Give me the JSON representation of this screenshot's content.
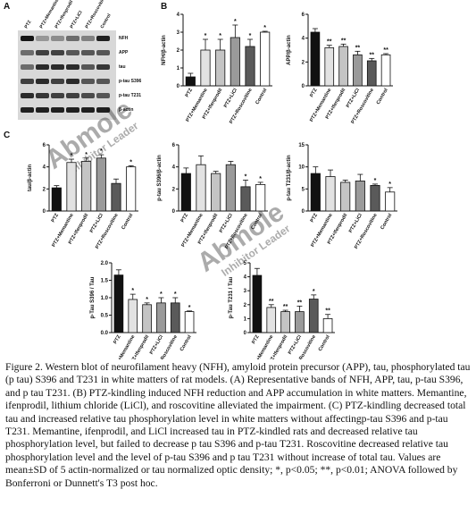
{
  "panels": [
    "A",
    "B",
    "C"
  ],
  "blot": {
    "columns": [
      "PTZ",
      "PTZ+Memantine",
      "PTZ+Ifenprodil",
      "PTZ+LiCl",
      "PTZ+Roscovitine",
      "Control"
    ],
    "rows": [
      "NFH",
      "APP",
      "tau",
      "p-tau S396",
      "p-tau T231",
      "β-actin"
    ]
  },
  "watermark": [
    "Abmole",
    "Inhibitor Leader"
  ],
  "chart_data": [
    {
      "type": "bar",
      "y_label": "NFH/β-actin",
      "categories": [
        "PTZ",
        "PTZ+Memantine",
        "PTZ+Ifenprodil",
        "PTZ+LiCl",
        "PTZ+Roscovitine",
        "Control"
      ],
      "values": [
        0.5,
        2.0,
        2.0,
        2.7,
        2.2,
        3.0
      ],
      "errors": [
        0.2,
        0.6,
        0.6,
        0.7,
        0.4,
        0.05
      ],
      "annotations": [
        null,
        "*",
        "*",
        "*",
        "*",
        "*"
      ],
      "colors": [
        "#111111",
        "#e2e2e2",
        "#c4c4c4",
        "#9a9a9a",
        "#5a5a5a",
        "#ffffff"
      ],
      "ylim": [
        0,
        4
      ],
      "yticks": [
        0,
        1,
        2,
        3,
        4
      ]
    },
    {
      "type": "bar",
      "y_label": "APP/β-actin",
      "categories": [
        "PTZ",
        "PTZ+Memantine",
        "PTZ+Ifenprodil",
        "PTZ+LiCl",
        "PTZ+Roscovitine",
        "Control"
      ],
      "values": [
        4.5,
        3.2,
        3.3,
        2.6,
        2.1,
        2.6
      ],
      "errors": [
        0.3,
        0.2,
        0.2,
        0.3,
        0.2,
        0.1
      ],
      "annotations": [
        null,
        "**",
        "**",
        "**",
        "**",
        "**"
      ],
      "colors": [
        "#111111",
        "#e2e2e2",
        "#c4c4c4",
        "#9a9a9a",
        "#5a5a5a",
        "#ffffff"
      ],
      "ylim": [
        0,
        6
      ],
      "yticks": [
        0,
        2,
        4,
        6
      ]
    },
    {
      "type": "bar",
      "y_label": "tau/β-actin",
      "categories": [
        "PTZ",
        "PTZ+Memantine",
        "PTZ+Ifenprodil",
        "PTZ+LiCl",
        "PTZ+Roscovitine",
        "Control"
      ],
      "values": [
        2.1,
        4.4,
        4.5,
        4.8,
        2.5,
        4.0
      ],
      "errors": [
        0.2,
        0.3,
        0.3,
        0.3,
        0.4,
        0.1
      ],
      "annotations": [
        null,
        "*",
        "*",
        "*",
        null,
        "*"
      ],
      "colors": [
        "#111111",
        "#e2e2e2",
        "#c4c4c4",
        "#9a9a9a",
        "#5a5a5a",
        "#ffffff"
      ],
      "ylim": [
        0,
        6
      ],
      "yticks": [
        0,
        2,
        4,
        6
      ]
    },
    {
      "type": "bar",
      "y_label": "p-tau S396/β-actin",
      "categories": [
        "PTZ",
        "PTZ+Memantine",
        "PTZ+Ifenprodil",
        "PTZ+LiCl",
        "PTZ+Roscovitine",
        "Control"
      ],
      "values": [
        3.4,
        4.2,
        3.4,
        4.2,
        2.2,
        2.4
      ],
      "errors": [
        0.5,
        0.8,
        0.2,
        0.3,
        0.6,
        0.2
      ],
      "annotations": [
        null,
        null,
        null,
        null,
        "*",
        "*"
      ],
      "colors": [
        "#111111",
        "#e2e2e2",
        "#c4c4c4",
        "#9a9a9a",
        "#5a5a5a",
        "#ffffff"
      ],
      "ylim": [
        0,
        6
      ],
      "yticks": [
        0,
        2,
        4,
        6
      ]
    },
    {
      "type": "bar",
      "y_label": "p-tau T231/β-actin",
      "categories": [
        "PTZ",
        "PTZ+Memantine",
        "PTZ+Ifenprodil",
        "PTZ+LiCl",
        "PTZ+Roscovitine",
        "Control"
      ],
      "values": [
        8.5,
        7.8,
        6.5,
        6.8,
        5.8,
        4.3
      ],
      "errors": [
        1.5,
        1.5,
        0.5,
        1.5,
        0.3,
        1.0
      ],
      "annotations": [
        null,
        null,
        null,
        null,
        "*",
        "*"
      ],
      "colors": [
        "#111111",
        "#e2e2e2",
        "#c4c4c4",
        "#9a9a9a",
        "#5a5a5a",
        "#ffffff"
      ],
      "ylim": [
        0,
        15
      ],
      "yticks": [
        0,
        5,
        10,
        15
      ]
    },
    {
      "type": "bar",
      "y_label": "p-Tau S396 / Tau",
      "categories": [
        "PTZ",
        "PTZ+Memantine",
        "PTZ+Ifenprodil",
        "PTZ+LiCl",
        "PTZ+Roscovitine",
        "Control"
      ],
      "values": [
        1.65,
        0.95,
        0.8,
        0.85,
        0.85,
        0.6
      ],
      "errors": [
        0.15,
        0.15,
        0.05,
        0.15,
        0.15,
        0.02
      ],
      "annotations": [
        null,
        "*",
        "*",
        "*",
        "*",
        "*"
      ],
      "colors": [
        "#111111",
        "#e2e2e2",
        "#c4c4c4",
        "#9a9a9a",
        "#5a5a5a",
        "#ffffff"
      ],
      "ylim": [
        0,
        2
      ],
      "yticks": [
        {
          "value": 0,
          "label": "0.0"
        },
        {
          "value": 0.5,
          "label": "0.5"
        },
        {
          "value": 1,
          "label": "1.0"
        },
        {
          "value": 1.5,
          "label": "1.5"
        },
        {
          "value": 2,
          "label": "2.0"
        }
      ]
    },
    {
      "type": "bar",
      "y_label": "p-Tau T231 / Tau",
      "categories": [
        "PTZ",
        "PTZ+Memantine",
        "PTZ+Ifenprodil",
        "PTZ+LiCl",
        "PTZ+Roscovitine",
        "Control"
      ],
      "values": [
        4.1,
        1.8,
        1.5,
        1.5,
        2.4,
        1.0
      ],
      "errors": [
        0.5,
        0.2,
        0.1,
        0.4,
        0.3,
        0.3
      ],
      "annotations": [
        null,
        "**",
        "**",
        "**",
        "*",
        "**"
      ],
      "colors": [
        "#111111",
        "#e2e2e2",
        "#c4c4c4",
        "#9a9a9a",
        "#5a5a5a",
        "#ffffff"
      ],
      "ylim": [
        0,
        5
      ],
      "yticks": [
        0,
        1,
        2,
        3,
        4,
        5
      ]
    }
  ],
  "caption": "Figure 2. Western blot of neurofilament heavy (NFH), amyloid protein precursor (APP), tau, phosphorylated tau (p tau) S396 and T231 in white matters of rat models. (A) Representative bands of NFH, APP, tau, p-tau S396, and p tau T231. (B) PTZ-kindling induced NFH reduction and APP accumulation in white matters. Memantine, ifenprodil, lithium chloride (LiCl), and roscovitine alleviated the impairment. (C) PTZ-kindling decreased total tau and increased relative tau phosphorylation level in white matters without affectingp-tau S396 and p-tau T231. Memantine, ifenprodil, and LiCl increased tau in PTZ-kindled rats and decreased relative tau phosphorylation level, but failed to decrease p tau S396 and p-tau T231. Roscovitine decreased relative tau phosphorylation level and the level of p-tau S396 and p tau T231 without increase of total tau. Values are mean±SD of 5 actin-normalized or tau normalized optic density; *, p<0.05; **, p<0.01; ANOVA followed by Bonferroni or Dunnett's T3 post hoc."
}
